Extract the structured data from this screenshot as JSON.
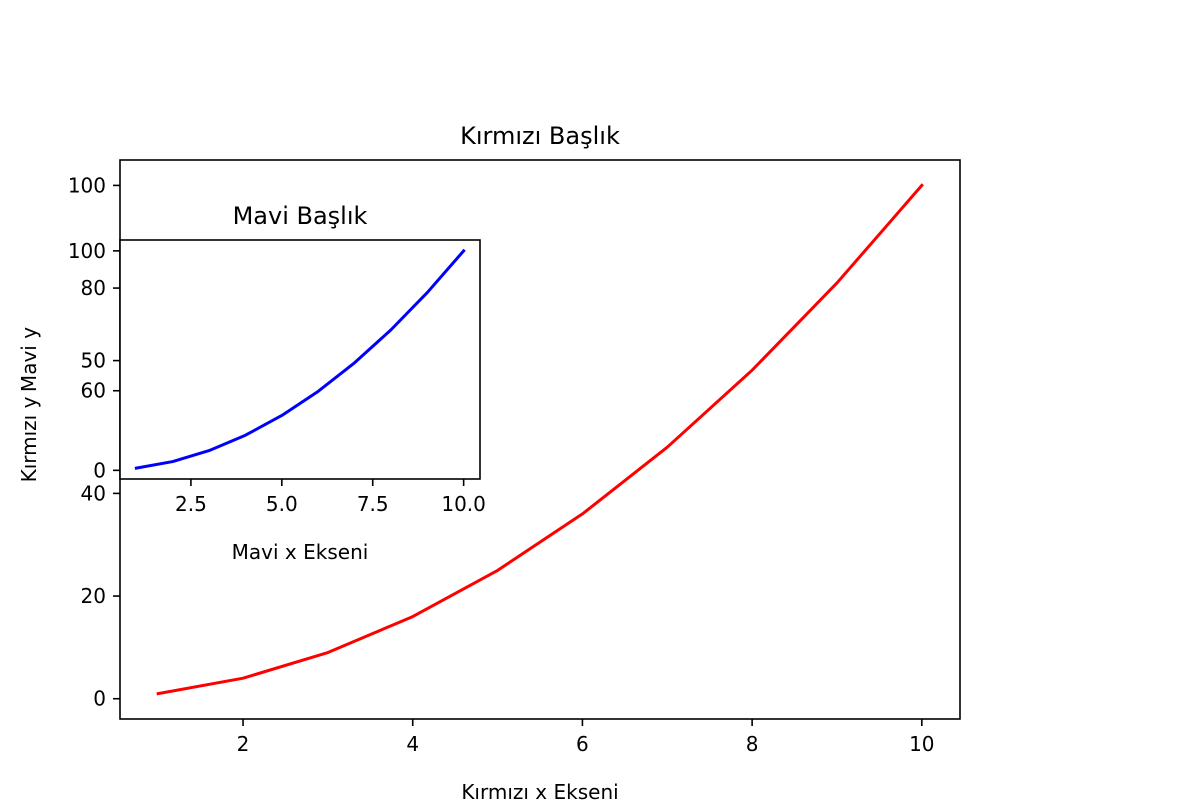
{
  "chart_data": [
    {
      "type": "line",
      "title": "Kırmızı Başlık",
      "xlabel": "Kırmızı x Ekseni",
      "ylabel": "Kırmızı y",
      "xlim": [
        0.55,
        10.45
      ],
      "ylim": [
        -3.95,
        104.95
      ],
      "xticks": [
        2,
        4,
        6,
        8,
        10
      ],
      "yticks": [
        0,
        20,
        40,
        60,
        80,
        100
      ],
      "grid": false,
      "color": "#ff0000",
      "series": [
        {
          "x": [
            1,
            2,
            3,
            4,
            5,
            6,
            7,
            8,
            9,
            10
          ],
          "values": [
            1,
            4,
            9,
            16,
            25,
            36,
            49,
            64,
            81,
            100
          ]
        }
      ]
    },
    {
      "type": "line",
      "title": "Mavi Başlık",
      "xlabel": "Mavi x Ekseni",
      "ylabel": "Mavi y",
      "xlim": [
        0.55,
        10.45
      ],
      "ylim": [
        -3.95,
        104.95
      ],
      "xticks": [
        2.5,
        5.0,
        7.5,
        10.0
      ],
      "yticks": [
        0,
        50,
        100
      ],
      "grid": false,
      "color": "#0000ff",
      "series": [
        {
          "x": [
            1,
            2,
            3,
            4,
            5,
            6,
            7,
            8,
            9,
            10
          ],
          "values": [
            1,
            4,
            9,
            16,
            25,
            36,
            49,
            64,
            81,
            100
          ]
        }
      ]
    }
  ]
}
